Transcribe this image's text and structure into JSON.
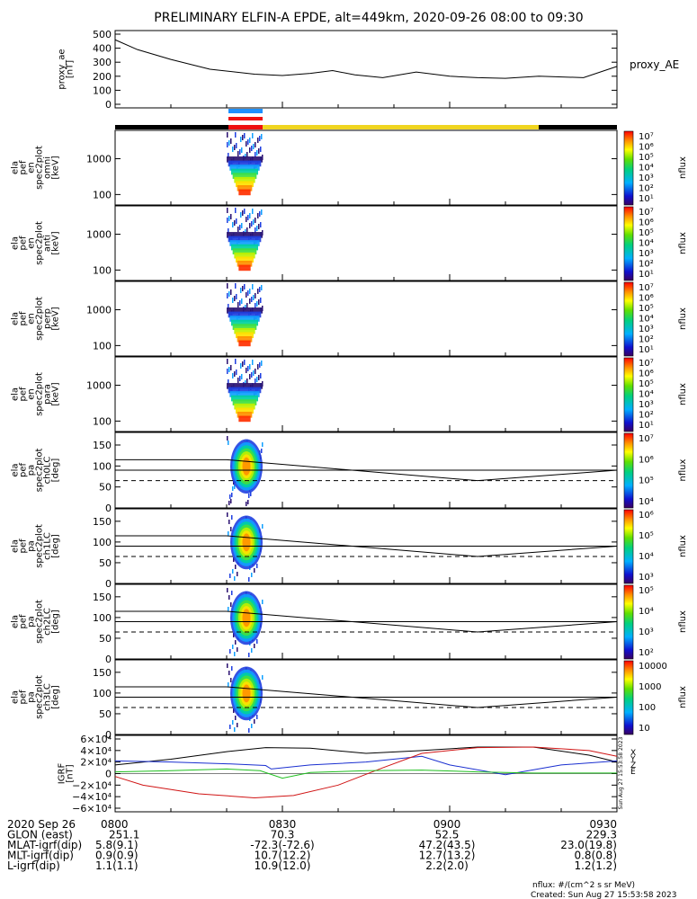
{
  "title": "PRELIMINARY ELFIN-A EPDE, alt=449km, 2020-09-26 08:00 to 09:30",
  "colors": {
    "ion_bar_blue": "#1e90ff",
    "ion_bar_red": "#ee1111",
    "yellow": "#f0d520",
    "black": "#000000",
    "ae": "#000000",
    "grf_x": "#000000",
    "grf_y": "#1a2fd0",
    "grf_z": "#d01414",
    "grf_e": "#20c020"
  },
  "time_axis": {
    "start": "08:00",
    "end": "09:30"
  },
  "panels": [
    {
      "id": "ae",
      "ylabel": [
        "proxy_ae",
        "[nT]"
      ],
      "yticks": [
        "500",
        "400",
        "300",
        "200",
        "100",
        "0"
      ],
      "right_label": "proxy_AE"
    },
    {
      "id": "omni",
      "ylabel": [
        "ela",
        "pef",
        "en",
        "spec2plot",
        "omni",
        "[keV]"
      ],
      "yticks": [
        "1000",
        "100"
      ],
      "cb_ticks": [
        "10⁷",
        "10⁶",
        "10⁵",
        "10⁴",
        "10³",
        "10²",
        "10¹"
      ],
      "cb_label": "nflux"
    },
    {
      "id": "anti",
      "ylabel": [
        "ela",
        "pef",
        "en",
        "spec2plot",
        "anti",
        "[keV]"
      ],
      "yticks": [
        "1000",
        "100"
      ],
      "cb_ticks": [
        "10⁷",
        "10⁶",
        "10⁵",
        "10⁴",
        "10³",
        "10²",
        "10¹"
      ],
      "cb_label": "nflux"
    },
    {
      "id": "perp",
      "ylabel": [
        "ela",
        "pef",
        "en",
        "spec2plot",
        "perp",
        "[keV]"
      ],
      "yticks": [
        "1000",
        "100"
      ],
      "cb_ticks": [
        "10⁷",
        "10⁶",
        "10⁵",
        "10⁴",
        "10³",
        "10²",
        "10¹"
      ],
      "cb_label": "nflux"
    },
    {
      "id": "para",
      "ylabel": [
        "ela",
        "pef",
        "en",
        "spec2plot",
        "para",
        "[keV]"
      ],
      "yticks": [
        "1000",
        "100"
      ],
      "cb_ticks": [
        "10⁷",
        "10⁶",
        "10⁵",
        "10⁴",
        "10³",
        "10²",
        "10¹"
      ],
      "cb_label": "nflux"
    },
    {
      "id": "ch0",
      "ylabel": [
        "ela",
        "pef",
        "pa",
        "spec2plot",
        "ch0LC",
        "[deg]"
      ],
      "yticks": [
        "150",
        "100",
        "50",
        "0"
      ],
      "cb_ticks": [
        "10⁷",
        "10⁶",
        "10⁵",
        "10⁴"
      ],
      "cb_label": "nflux"
    },
    {
      "id": "ch1",
      "ylabel": [
        "ela",
        "pef",
        "pa",
        "spec2plot",
        "ch1LC",
        "[deg]"
      ],
      "yticks": [
        "150",
        "100",
        "50",
        "0"
      ],
      "cb_ticks": [
        "10⁶",
        "10⁵",
        "10⁴",
        "10³"
      ],
      "cb_label": "nflux"
    },
    {
      "id": "ch2",
      "ylabel": [
        "ela",
        "pef",
        "pa",
        "spec2plot",
        "ch2LC",
        "[deg]"
      ],
      "yticks": [
        "150",
        "100",
        "50",
        "0"
      ],
      "cb_ticks": [
        "10⁵",
        "10⁴",
        "10³",
        "10²"
      ],
      "cb_label": "nflux"
    },
    {
      "id": "ch3",
      "ylabel": [
        "ela",
        "pef",
        "pa",
        "spec2plot",
        "ch3LC",
        "[deg]"
      ],
      "yticks": [
        "150",
        "100",
        "50",
        "0"
      ],
      "cb_ticks": [
        "10000",
        "1000",
        "100",
        "10"
      ],
      "cb_label": "nflux"
    },
    {
      "id": "grf",
      "ylabel": [
        "IGRF",
        "[nT]"
      ],
      "yticks": [
        "6×10⁴",
        "4×10⁴",
        "2×10⁴",
        "0",
        "−2×10⁴",
        "−4×10⁴",
        "−6×10⁴"
      ],
      "legend": [
        "X",
        "Y",
        "Z",
        "E"
      ],
      "side_note": "Sun Aug 27 15:53:58 2023"
    }
  ],
  "xaxis_rows": [
    {
      "label": "2020 Sep 26",
      "values": [
        "0800",
        "0830",
        "0900",
        "0930"
      ]
    },
    {
      "label": "GLON (east)",
      "values": [
        "251.1",
        "70.3",
        "52.5",
        "229.3"
      ]
    },
    {
      "label": "MLAT-igrf(dip)",
      "values": [
        "5.8(9.1)",
        "-72.3(-72.6)",
        "47.2(43.5)",
        "23.0(19.8)"
      ]
    },
    {
      "label": "MLT-igrf(dip)",
      "values": [
        "0.9(0.9)",
        "10.7(12.2)",
        "12.7(13.2)",
        "0.8(0.8)"
      ]
    },
    {
      "label": "L-igrf(dip)",
      "values": [
        "1.1(1.1)",
        "10.9(12.0)",
        "2.2(2.0)",
        "1.2(1.2)"
      ]
    }
  ],
  "footer": {
    "units": "nflux: #/(cm^2 s sr MeV)",
    "created": "Created: Sun Aug 27 15:53:58 2023"
  },
  "chart_data": {
    "type": "line",
    "x_unit": "minutes after 08:00 UT",
    "proxy_ae": {
      "ylim": [
        0,
        500
      ],
      "x": [
        0,
        4,
        10,
        17,
        25,
        30,
        35,
        39,
        43,
        48,
        54,
        60,
        65,
        70,
        76,
        84,
        90
      ],
      "y": [
        460,
        390,
        320,
        250,
        215,
        205,
        220,
        240,
        210,
        190,
        230,
        200,
        190,
        185,
        200,
        190,
        270
      ]
    },
    "pitch_angle_lines": {
      "ylim": [
        0,
        180
      ],
      "loss_cone_line": {
        "x": [
          20,
          65,
          90
        ],
        "y": [
          115,
          65,
          90
        ]
      },
      "flat_line": {
        "y": 90
      },
      "dashed_line": {
        "y": 65
      }
    },
    "igrf": {
      "ylim": [
        -60000,
        60000
      ],
      "series": [
        {
          "name": "X",
          "x": [
            0,
            10,
            20,
            27,
            35,
            45,
            55,
            65,
            75,
            85,
            90
          ],
          "y": [
            15000,
            25000,
            38000,
            45000,
            44000,
            35000,
            40000,
            46000,
            46000,
            32000,
            20000
          ]
        },
        {
          "name": "Y",
          "x": [
            0,
            10,
            20,
            27,
            28,
            35,
            45,
            55,
            60,
            70,
            80,
            90
          ],
          "y": [
            22000,
            20000,
            17000,
            14000,
            8000,
            15000,
            20000,
            30000,
            15000,
            -2000,
            15000,
            22000
          ]
        },
        {
          "name": "Z",
          "x": [
            0,
            5,
            15,
            25,
            32,
            40,
            48,
            55,
            65,
            75,
            85,
            90
          ],
          "y": [
            -5000,
            -20000,
            -35000,
            -42000,
            -38000,
            -20000,
            10000,
            35000,
            45000,
            46000,
            40000,
            30000
          ]
        },
        {
          "name": "E",
          "x": [
            0,
            10,
            20,
            26,
            30,
            35,
            45,
            55,
            65,
            75,
            85,
            90
          ],
          "y": [
            3000,
            5000,
            8000,
            5000,
            -8000,
            2000,
            5000,
            6000,
            3000,
            1000,
            1000,
            1000
          ]
        }
      ]
    },
    "spectrogram_interval": {
      "x_start": 20,
      "x_end": 25
    }
  }
}
